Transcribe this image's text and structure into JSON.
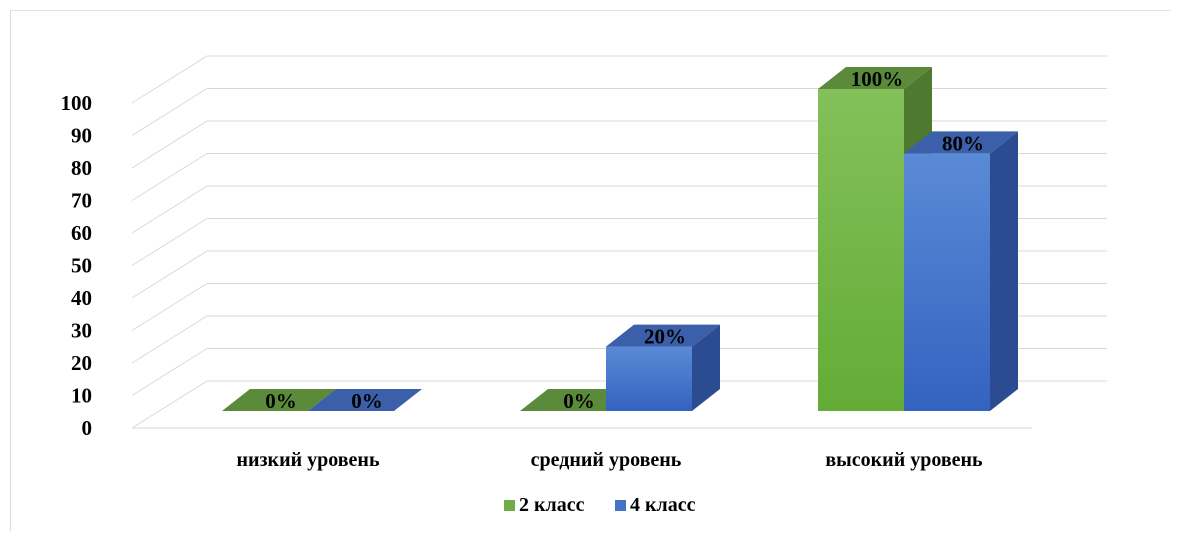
{
  "chart_data": {
    "type": "bar",
    "categories": [
      "низкий уровень",
      "средний уровень",
      "высокий уровень"
    ],
    "series": [
      {
        "name": "2 класс",
        "values": [
          0,
          0,
          100
        ],
        "labels": [
          "0%",
          "0%",
          "100%"
        ],
        "color": "#70ad47"
      },
      {
        "name": "4 класс",
        "values": [
          0,
          20,
          80
        ],
        "labels": [
          "0%",
          "20%",
          "80%"
        ],
        "color": "#4472c4"
      }
    ],
    "ylim": [
      0,
      100
    ],
    "yticks": [
      "0",
      "10",
      "20",
      "30",
      "40",
      "50",
      "60",
      "70",
      "80",
      "90",
      "100"
    ],
    "grid": true,
    "legend": "bottom",
    "style": "3d-column"
  }
}
